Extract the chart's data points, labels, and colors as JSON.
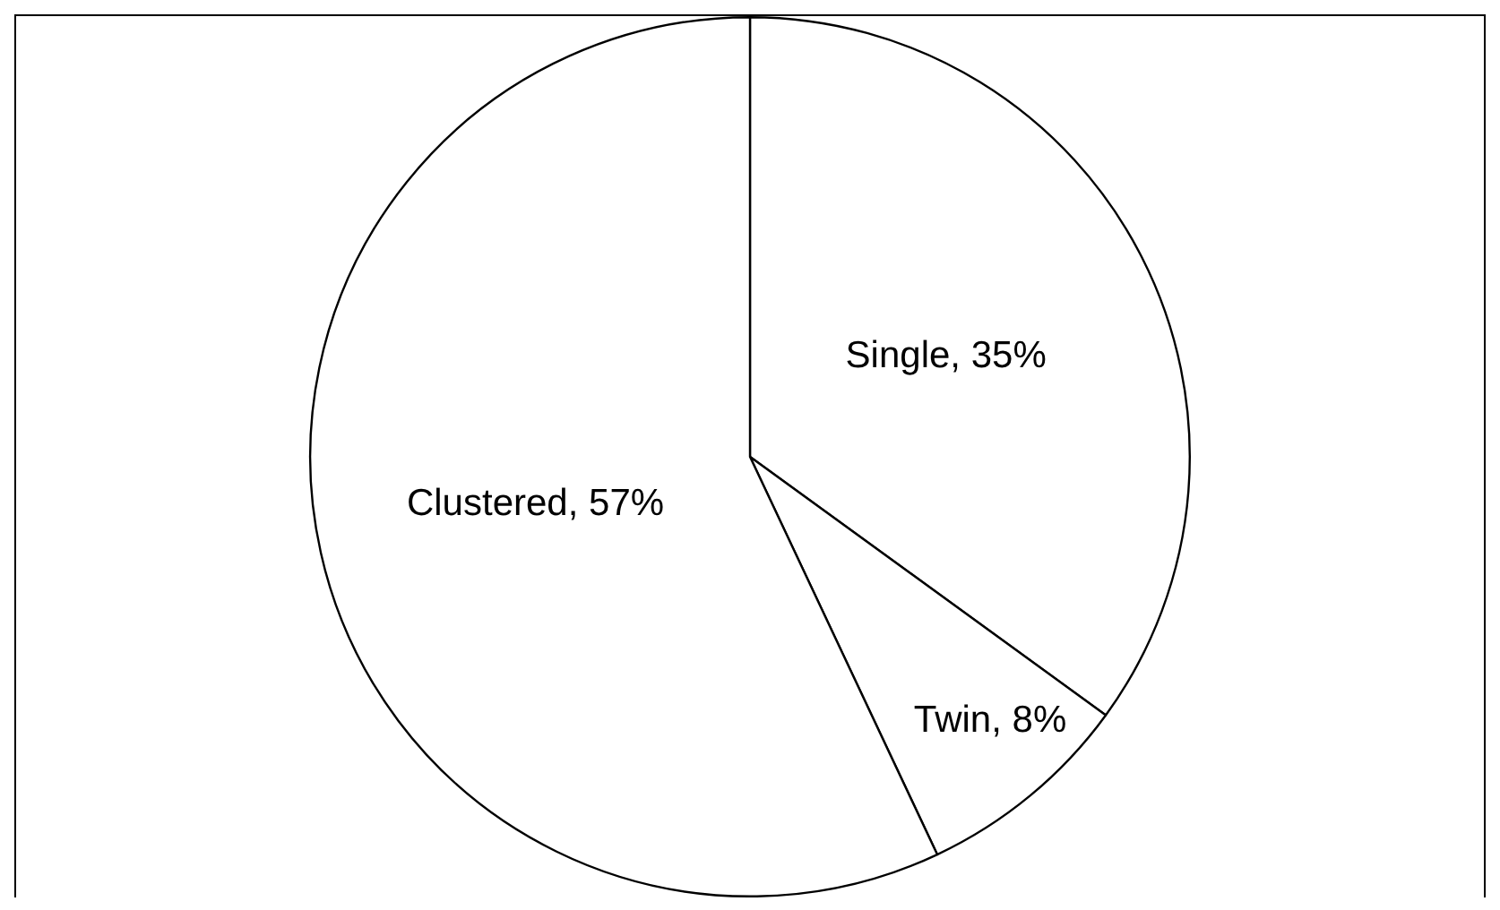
{
  "chart_data": {
    "type": "pie",
    "categories": [
      "Single",
      "Twin",
      "Clustered"
    ],
    "values": [
      35,
      8,
      57
    ],
    "colors": [
      "#ffffff",
      "#ffffff",
      "#ffffff"
    ],
    "value_labels": [
      "35%",
      "8%",
      "57%"
    ],
    "legend": false
  }
}
